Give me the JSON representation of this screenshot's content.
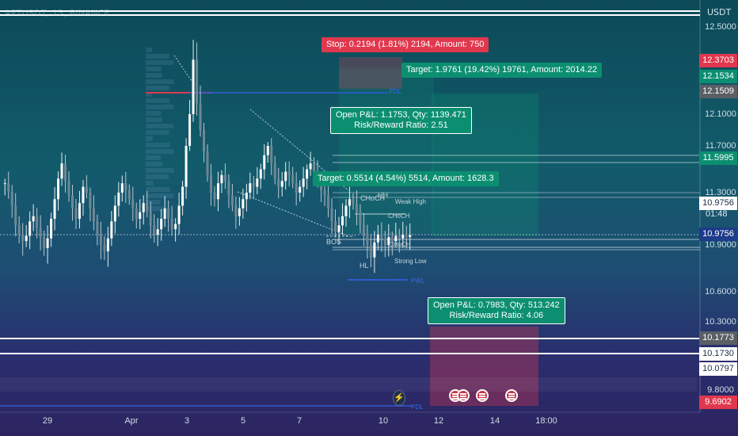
{
  "header": {
    "symbol": "APTUSDT, 15, BINANCE",
    "currency": "USDT"
  },
  "chart_data": {
    "type": "candlestick",
    "ylim": [
      9.65,
      12.58
    ],
    "y_ticks": [
      "12.5000",
      "12.1000",
      "11.7000",
      "11.3000",
      "10.9000",
      "10.6000",
      "10.3000",
      "9.8000"
    ],
    "x_ticks": [
      "29",
      "Apr",
      "3",
      "5",
      "7",
      "10",
      "12",
      "14",
      "18:00"
    ],
    "closes": [
      11.38,
      11.31,
      11.2,
      11.05,
      10.98,
      10.93,
      10.97,
      11.08,
      11.12,
      11.03,
      10.96,
      10.88,
      10.95,
      11.1,
      11.25,
      11.42,
      11.55,
      11.4,
      11.28,
      11.18,
      11.1,
      11.22,
      11.35,
      11.3,
      11.18,
      11.08,
      10.98,
      10.9,
      10.86,
      10.95,
      11.08,
      11.2,
      11.3,
      11.38,
      11.32,
      11.25,
      11.18,
      11.1,
      11.15,
      11.22,
      11.16,
      11.05,
      10.98,
      11.02,
      11.1,
      11.18,
      11.1,
      11.02,
      11.06,
      11.2,
      11.35,
      11.7,
      12.1,
      12.35,
      12.15,
      11.9,
      11.65,
      11.45,
      11.3,
      11.25,
      11.38,
      11.45,
      11.4,
      11.28,
      11.2,
      11.12,
      11.18,
      11.25,
      11.3,
      11.38,
      11.35,
      11.42,
      11.5,
      11.62,
      11.7,
      11.55,
      11.42,
      11.35,
      11.4,
      11.48,
      11.45,
      11.38,
      11.3,
      11.35,
      11.42,
      11.5,
      11.55,
      11.48,
      11.4,
      11.32,
      11.28,
      11.18,
      11.08,
      11.0,
      11.05,
      11.12,
      11.2,
      11.25,
      11.22,
      11.15,
      11.05,
      10.98,
      10.9,
      10.82,
      10.92,
      10.98,
      10.95,
      10.9,
      10.96,
      10.93,
      10.97,
      10.95,
      10.98,
      10.96,
      10.9756
    ],
    "price_tags": [
      {
        "label": "12.3703",
        "value": 12.3703,
        "color": "#e0384e"
      },
      {
        "label": "12.1534",
        "value": 12.1534,
        "color": "#0c8f71"
      },
      {
        "label": "12.1509",
        "value": 12.1509,
        "color": "#5a5f66"
      },
      {
        "label": "11.5995",
        "value": 11.5995,
        "color": "#0c8f71"
      },
      {
        "label": "10.9756",
        "value": 10.9756,
        "color": "#ffffff"
      },
      {
        "label": "10.9756",
        "value": 10.9756,
        "color": "#1e3a8a"
      },
      {
        "label": "10.1773",
        "value": 10.1773,
        "color": "#5a5f66"
      },
      {
        "label": "10.1730",
        "value": 10.173,
        "color": "#ffffff"
      },
      {
        "label": "10.0797",
        "value": 10.0797,
        "color": "#ffffff"
      },
      {
        "label": "9.6902",
        "value": 9.6902,
        "color": "#e0384e"
      }
    ],
    "countdown": "01:48",
    "labels": {
      "stop": "Stop: 0.2194 (1.81%) 2194, Amount: 750",
      "target_top": "Target: 1.9761 (19.42%) 19761, Amount: 2014.22",
      "pnl_top_1": "Open P&L: 1.1753, Qty: 1139.471",
      "pnl_top_2": "Risk/Reward Ratio: 2.51",
      "target_mid": "Target: 0.5514 (4.54%) 5514, Amount: 1628.3",
      "pnl_bottom_1": "Open P&L: 0.7983, Qty: 513.242",
      "pnl_bottom_2": "Risk/Reward Ratio: 4.06",
      "choch": "CHoCH",
      "hh": "HH",
      "weak_high": "Weak High",
      "bos": "BOS",
      "hl": "HL",
      "strong_low": "Strong Low",
      "choch_small_1": "CHoCH",
      "choch_small_2": "CHoCH",
      "pwl": "PWL",
      "pdl": "PDL"
    },
    "colors": {
      "green": "#0c8f71",
      "red": "#e0384e",
      "blue": "#2f5bd6"
    }
  }
}
